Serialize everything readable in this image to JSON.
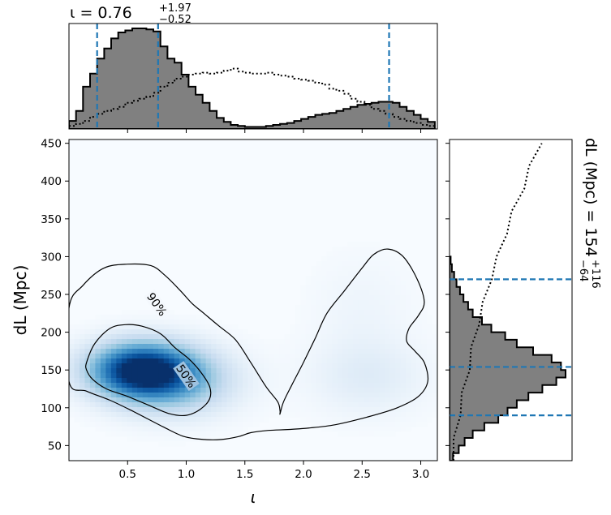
{
  "chart_data": [
    {
      "type": "histogram",
      "panel": "top-marginal",
      "title": "ι = 0.76",
      "title_sup": "+1.97",
      "title_sub": "−0.52",
      "xlim": [
        0.0,
        3.1416
      ],
      "bins_x": [
        0.0,
        0.06,
        0.12,
        0.18,
        0.24,
        0.3,
        0.36,
        0.42,
        0.48,
        0.54,
        0.6,
        0.66,
        0.72,
        0.78,
        0.84,
        0.9,
        0.96,
        1.02,
        1.08,
        1.14,
        1.2,
        1.26,
        1.32,
        1.38,
        1.44,
        1.5,
        1.56,
        1.62,
        1.68,
        1.74,
        1.8,
        1.86,
        1.92,
        1.98,
        2.04,
        2.1,
        2.16,
        2.22,
        2.28,
        2.34,
        2.4,
        2.46,
        2.52,
        2.58,
        2.64,
        2.7,
        2.76,
        2.82,
        2.88,
        2.94,
        3.0,
        3.06,
        3.12
      ],
      "posterior": [
        0.08,
        0.18,
        0.42,
        0.55,
        0.7,
        0.8,
        0.9,
        0.96,
        0.98,
        1.0,
        1.0,
        0.99,
        0.97,
        0.82,
        0.7,
        0.66,
        0.54,
        0.42,
        0.34,
        0.26,
        0.18,
        0.11,
        0.07,
        0.04,
        0.03,
        0.02,
        0.02,
        0.02,
        0.03,
        0.04,
        0.05,
        0.06,
        0.08,
        0.1,
        0.12,
        0.14,
        0.15,
        0.16,
        0.18,
        0.2,
        0.22,
        0.24,
        0.25,
        0.26,
        0.27,
        0.27,
        0.26,
        0.22,
        0.18,
        0.14,
        0.1,
        0.07
      ],
      "prior": [
        0.03,
        0.05,
        0.08,
        0.12,
        0.15,
        0.18,
        0.2,
        0.22,
        0.26,
        0.28,
        0.3,
        0.32,
        0.36,
        0.42,
        0.46,
        0.5,
        0.52,
        0.54,
        0.55,
        0.56,
        0.55,
        0.56,
        0.58,
        0.6,
        0.57,
        0.56,
        0.55,
        0.55,
        0.56,
        0.54,
        0.53,
        0.52,
        0.5,
        0.49,
        0.48,
        0.46,
        0.44,
        0.4,
        0.38,
        0.35,
        0.3,
        0.27,
        0.24,
        0.2,
        0.18,
        0.15,
        0.12,
        0.1,
        0.08,
        0.06,
        0.04,
        0.03
      ],
      "quantiles": [
        0.24,
        0.76,
        2.73
      ],
      "colors": {
        "fill": "#808080",
        "edge": "#000000",
        "prior": "#000000",
        "quantile": "#1f77b4"
      }
    },
    {
      "type": "heatmap",
      "panel": "joint",
      "xlabel": "ι",
      "ylabel": "dL (Mpc)",
      "xlim": [
        0.0,
        3.1416
      ],
      "ylim": [
        30,
        455
      ],
      "xticks": [
        0.5,
        1.0,
        1.5,
        2.0,
        2.5,
        3.0
      ],
      "xtick_labels": [
        "0.5",
        "1.0",
        "1.5",
        "2.0",
        "2.5",
        "3.0"
      ],
      "yticks": [
        50,
        100,
        150,
        200,
        250,
        300,
        350,
        400,
        450
      ],
      "ytick_labels": [
        "50",
        "100",
        "150",
        "200",
        "250",
        "300",
        "350",
        "400",
        "450"
      ],
      "density_peaks": [
        {
          "x": 0.6,
          "y": 150,
          "sx": 0.3,
          "sy": 25,
          "w": 1.0
        },
        {
          "x": 0.9,
          "y": 135,
          "sx": 0.35,
          "sy": 30,
          "w": 0.45
        },
        {
          "x": 2.55,
          "y": 140,
          "sx": 0.35,
          "sy": 35,
          "w": 0.12
        },
        {
          "x": 2.5,
          "y": 230,
          "sx": 0.3,
          "sy": 50,
          "w": 0.05
        }
      ],
      "contour_90": [
        [
          0.0,
          232
        ],
        [
          0.12,
          262
        ],
        [
          0.3,
          285
        ],
        [
          0.5,
          290
        ],
        [
          0.7,
          288
        ],
        [
          0.82,
          275
        ],
        [
          0.95,
          255
        ],
        [
          1.05,
          238
        ],
        [
          1.15,
          225
        ],
        [
          1.28,
          208
        ],
        [
          1.42,
          190
        ],
        [
          1.55,
          160
        ],
        [
          1.68,
          128
        ],
        [
          1.78,
          108
        ],
        [
          1.8,
          96
        ],
        [
          1.8,
          92
        ],
        [
          1.83,
          108
        ],
        [
          1.9,
          130
        ],
        [
          2.0,
          160
        ],
        [
          2.1,
          192
        ],
        [
          2.2,
          225
        ],
        [
          2.35,
          255
        ],
        [
          2.5,
          285
        ],
        [
          2.6,
          303
        ],
        [
          2.72,
          310
        ],
        [
          2.85,
          300
        ],
        [
          2.97,
          270
        ],
        [
          3.03,
          240
        ],
        [
          2.98,
          222
        ],
        [
          2.9,
          205
        ],
        [
          2.88,
          188
        ],
        [
          2.95,
          175
        ],
        [
          3.03,
          160
        ],
        [
          3.06,
          135
        ],
        [
          2.98,
          115
        ],
        [
          2.8,
          100
        ],
        [
          2.55,
          88
        ],
        [
          2.25,
          77
        ],
        [
          1.95,
          72
        ],
        [
          1.7,
          70
        ],
        [
          1.55,
          67
        ],
        [
          1.45,
          62
        ],
        [
          1.3,
          58
        ],
        [
          1.15,
          58
        ],
        [
          0.98,
          62
        ],
        [
          0.8,
          75
        ],
        [
          0.55,
          95
        ],
        [
          0.35,
          110
        ],
        [
          0.15,
          122
        ],
        [
          0.0,
          135
        ]
      ],
      "contour_50": [
        [
          0.15,
          160
        ],
        [
          0.22,
          185
        ],
        [
          0.35,
          205
        ],
        [
          0.48,
          210
        ],
        [
          0.62,
          208
        ],
        [
          0.78,
          198
        ],
        [
          0.9,
          180
        ],
        [
          1.02,
          165
        ],
        [
          1.12,
          148
        ],
        [
          1.2,
          128
        ],
        [
          1.2,
          112
        ],
        [
          1.12,
          98
        ],
        [
          1.0,
          90
        ],
        [
          0.86,
          92
        ],
        [
          0.7,
          102
        ],
        [
          0.5,
          115
        ],
        [
          0.32,
          125
        ],
        [
          0.2,
          138
        ],
        [
          0.15,
          150
        ]
      ],
      "contour_labels": [
        {
          "text": "90%",
          "x": 0.75,
          "y": 237,
          "angle": -55
        },
        {
          "text": "50%",
          "x": 1.0,
          "y": 142,
          "angle": -55
        }
      ],
      "colormap": "Blues"
    },
    {
      "type": "histogram",
      "panel": "right-marginal",
      "orientation": "horizontal",
      "title": "dL (Mpc) = 154",
      "title_sup": "+116",
      "title_sub": "−64",
      "ylim": [
        30,
        455
      ],
      "bins_y": [
        30,
        40,
        50,
        60,
        70,
        80,
        90,
        100,
        110,
        120,
        130,
        140,
        150,
        160,
        170,
        180,
        190,
        200,
        210,
        220,
        230,
        240,
        250,
        260,
        270,
        280,
        290,
        300
      ],
      "posterior": [
        0.03,
        0.08,
        0.13,
        0.2,
        0.3,
        0.42,
        0.5,
        0.58,
        0.68,
        0.8,
        0.92,
        1.0,
        0.96,
        0.88,
        0.72,
        0.58,
        0.48,
        0.36,
        0.28,
        0.2,
        0.16,
        0.12,
        0.09,
        0.06,
        0.04,
        0.02,
        0.01
      ],
      "prior_y": [
        30,
        60,
        90,
        120,
        150,
        180,
        210,
        240,
        270,
        300,
        330,
        360,
        390,
        420,
        450
      ],
      "prior": [
        0.02,
        0.05,
        0.08,
        0.12,
        0.16,
        0.2,
        0.24,
        0.3,
        0.35,
        0.42,
        0.48,
        0.55,
        0.63,
        0.7,
        0.78
      ],
      "quantiles": [
        90,
        154,
        270
      ],
      "colors": {
        "fill": "#808080",
        "edge": "#000000",
        "prior": "#000000",
        "quantile": "#1f77b4"
      }
    }
  ]
}
